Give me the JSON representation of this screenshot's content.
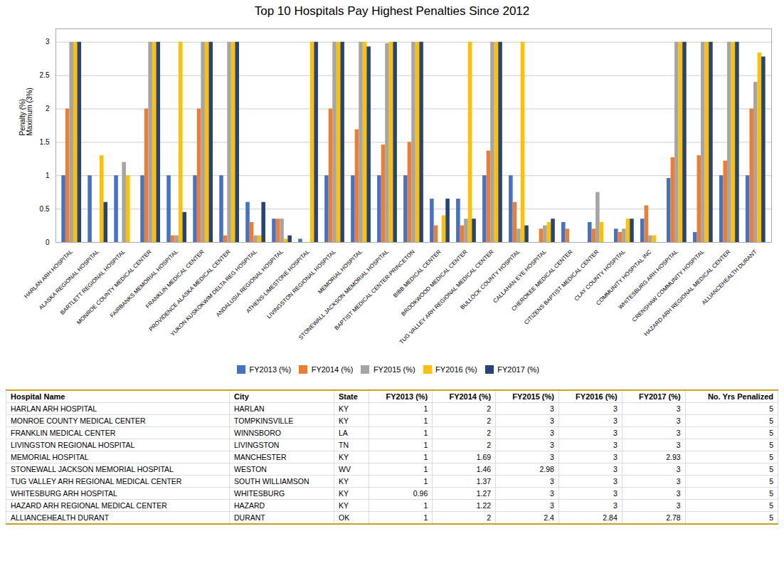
{
  "chart_data": [
    {
      "type": "bar",
      "title": "Top 10 Hospitals Pay Highest Penalties Since 2012",
      "ylabel": "Penalty (%)\nMaximum (3%)",
      "categories": [
        "HARLAN ARH HOSPITAL",
        "ALASKA REGIONAL HOSPITAL",
        "BARTLETT REGIONAL HOSPITAL",
        "MONROE COUNTY MEDICAL CENTER",
        "FAIRBANKS MEMORIAL HOSPITAL",
        "FRANKLIN MEDICAL CENTER",
        "PROVIDENCE ALASKA MEDICAL CENTER",
        "YUKON KUSKOKWIM DELTA REG HOSPITAL",
        "ANDALUSIA REGIONAL HOSPITAL",
        "ATHENS-LIMESTONE HOSPITAL",
        "LIVINGSTON REGIONAL HOSPITAL",
        "MEMORIAL HOSPITAL",
        "STONEWALL JACKSON MEMORIAL HOSPITAL",
        "BAPTIST MEDICAL CENTER-PRINCETON",
        "BIBB MEDICAL CENTER",
        "BROOKWOOD MEDICAL CENTER",
        "TUG VALLEY ARH REGIONAL MEDICAL CENTER",
        "BULLOCK COUNTY HOSPITAL",
        "CALLAHAN EYE HOSPITAL",
        "CHEROKEE MEDICAL CENTER",
        "CITIZENS BAPTIST MEDICAL CENTER",
        "CLAY COUNTY HOSPITAL",
        "COMMUNITY HOSPITAL INC",
        "WHITESBURG ARH HOSPITAL",
        "CRENSHAW COMMUNITY HOSPITAL",
        "HAZARD ARH REGIONAL MEDICAL CENTER",
        "ALLIANCEHEALTH DURANT"
      ],
      "series": [
        {
          "name": "FY2013 (%)",
          "color": "#4472c4",
          "values": [
            1,
            1,
            1,
            1,
            1,
            1,
            1,
            0.6,
            0.35,
            0.05,
            1,
            1,
            1,
            1,
            0.65,
            0.65,
            1,
            1,
            0,
            0.3,
            0.3,
            0.2,
            0.35,
            0.96,
            0.15,
            1,
            1
          ]
        },
        {
          "name": "FY2014 (%)",
          "color": "#ed7d31",
          "values": [
            2,
            0,
            0,
            2,
            0.1,
            2,
            0.1,
            0.3,
            0.35,
            0,
            2,
            1.69,
            1.46,
            1.5,
            0.25,
            0.25,
            1.37,
            0.6,
            0.2,
            0.2,
            0.2,
            0.15,
            0.55,
            1.27,
            1.3,
            1.22,
            2
          ]
        },
        {
          "name": "FY2015 (%)",
          "color": "#a5a5a5",
          "values": [
            3,
            0,
            1.2,
            3,
            0.1,
            3,
            3,
            0.1,
            0.35,
            0,
            3,
            3,
            2.98,
            3,
            0,
            0.35,
            3,
            0.2,
            0.25,
            0,
            0.75,
            0.2,
            0.1,
            3,
            3,
            3,
            2.4
          ]
        },
        {
          "name": "FY2016 (%)",
          "color": "#ffc000",
          "values": [
            3,
            1.3,
            1,
            3,
            3,
            3,
            3,
            0.1,
            0.05,
            3,
            3,
            3,
            3,
            3,
            0.4,
            3,
            3,
            3,
            0.3,
            0,
            0.3,
            0.35,
            0.1,
            3,
            3,
            3,
            2.84
          ]
        },
        {
          "name": "FY2017 (%)",
          "color": "#264478",
          "values": [
            3,
            0.6,
            0,
            3,
            0.45,
            3,
            3,
            0.6,
            0.1,
            3,
            3,
            2.93,
            3,
            3,
            0.65,
            0.35,
            3,
            0.25,
            0.35,
            0,
            0,
            0.35,
            0,
            3,
            3,
            3,
            2.78
          ]
        }
      ],
      "ylim": [
        0,
        3.2
      ],
      "yticks": [
        0,
        0.5,
        1,
        1.5,
        2,
        2.5,
        3
      ],
      "grid": true,
      "legend": "bottom"
    },
    {
      "type": "table",
      "color": "#c9a227",
      "columns": [
        "Hospital Name",
        "City",
        "State",
        "FY2013 (%)",
        "FY2014 (%)",
        "FY2015 (%)",
        "FY2016 (%)",
        "FY2017 (%)",
        "No. Yrs Penalized"
      ],
      "rows": [
        [
          "HARLAN ARH HOSPITAL",
          "HARLAN",
          "KY",
          1,
          2,
          3,
          3,
          3,
          5
        ],
        [
          "MONROE COUNTY MEDICAL CENTER",
          "TOMPKINSVILLE",
          "KY",
          1,
          2,
          3,
          3,
          3,
          5
        ],
        [
          "FRANKLIN MEDICAL CENTER",
          "WINNSBORO",
          "LA",
          1,
          2,
          3,
          3,
          3,
          5
        ],
        [
          "LIVINGSTON REGIONAL HOSPITAL",
          "LIVINGSTON",
          "TN",
          1,
          2,
          3,
          3,
          3,
          5
        ],
        [
          "MEMORIAL HOSPITAL",
          "MANCHESTER",
          "KY",
          1,
          1.69,
          3,
          3,
          2.93,
          5
        ],
        [
          "STONEWALL JACKSON MEMORIAL HOSPITAL",
          "WESTON",
          "WV",
          1,
          1.46,
          2.98,
          3,
          3,
          5
        ],
        [
          "TUG VALLEY ARH REGIONAL MEDICAL CENTER",
          "SOUTH WILLIAMSON",
          "KY",
          1,
          1.37,
          3,
          3,
          3,
          5
        ],
        [
          "WHITESBURG ARH HOSPITAL",
          "WHITESBURG",
          "KY",
          0.96,
          1.27,
          3,
          3,
          3,
          5
        ],
        [
          "HAZARD ARH REGIONAL MEDICAL CENTER",
          "HAZARD",
          "KY",
          1,
          1.22,
          3,
          3,
          3,
          5
        ],
        [
          "ALLIANCEHEALTH DURANT",
          "DURANT",
          "OK",
          1,
          2,
          2.4,
          2.84,
          2.78,
          5
        ]
      ]
    }
  ]
}
